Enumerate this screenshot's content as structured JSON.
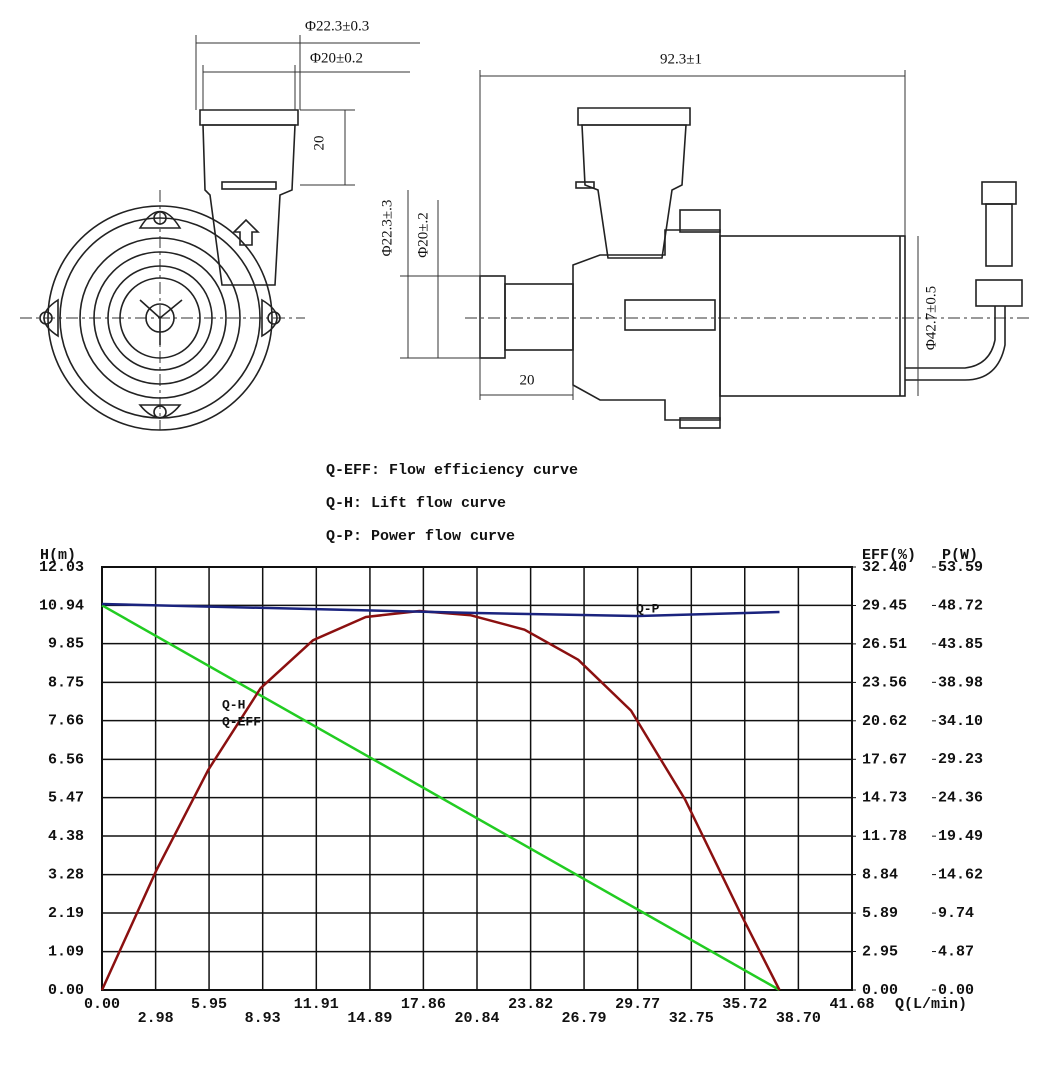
{
  "drawing": {
    "dimensions": [
      "Φ22.3±0.3",
      "Φ20±0.2",
      "20",
      "92.3±1",
      "Φ22.3±.3",
      "Φ20±.2",
      "20",
      "Φ42.7±0.5"
    ]
  },
  "chart_data": {
    "type": "line",
    "legend_text": [
      "Q-EFF: Flow efficiency curve",
      "Q-H: Lift flow curve",
      "Q-P: Power flow curve"
    ],
    "xlabel": "Q(L/min)",
    "ylabel": "H(m)",
    "y2label": "EFF(%)",
    "y3label": "P(W)",
    "xlim": [
      0,
      41.68
    ],
    "xticks": [
      {
        "value": 0,
        "label": "0.00"
      },
      2.98,
      5.95,
      8.93,
      11.91,
      14.89,
      17.86,
      20.84,
      23.82,
      26.79,
      29.77,
      32.75,
      35.72,
      {
        "value": 38.7,
        "label": "38.70"
      },
      41.68
    ],
    "ylim": [
      0,
      12.03
    ],
    "yticks": [
      {
        "value": 0,
        "label": "0.00"
      },
      1.09,
      2.19,
      3.28,
      4.38,
      5.47,
      6.56,
      7.66,
      8.75,
      9.85,
      10.94,
      12.03
    ],
    "y2lim": [
      0,
      32.4
    ],
    "y2ticks": [
      {
        "value": 0,
        "label": "0.00"
      },
      2.95,
      5.89,
      8.84,
      11.78,
      14.73,
      17.67,
      20.62,
      23.56,
      26.51,
      29.45,
      {
        "value": 32.4,
        "label": "32.40"
      }
    ],
    "y3lim": [
      0,
      53.59
    ],
    "y3ticks": [
      {
        "value": 0,
        "label": "0.00"
      },
      4.87,
      9.74,
      14.62,
      19.49,
      24.36,
      29.23,
      {
        "value": 34.1,
        "label": "34.10"
      },
      38.98,
      43.85,
      48.72,
      53.59
    ],
    "grid": true,
    "series": [
      {
        "name": "Q-H",
        "color": "#22cc22",
        "axis": "y",
        "x": [
          0,
          37.65
        ],
        "values": [
          10.94,
          0
        ]
      },
      {
        "name": "Q-EFF",
        "color": "#8b1010",
        "axis": "y2",
        "x": [
          0,
          3.03,
          5.9,
          8.82,
          11.74,
          14.66,
          17.64,
          20.5,
          23.48,
          26.46,
          29.4,
          32.4,
          35.4,
          37.65
        ],
        "values": [
          0,
          9.19,
          16.85,
          23.13,
          26.8,
          28.57,
          29.03,
          28.7,
          27.6,
          25.3,
          21.4,
          14.6,
          6.1,
          0
        ]
      },
      {
        "name": "Q-P",
        "color": "#1a237e",
        "axis": "y3",
        "x": [
          0,
          20.8,
          29.8,
          37.65
        ],
        "values": [
          48.9,
          47.76,
          47.38,
          47.89
        ]
      }
    ]
  }
}
